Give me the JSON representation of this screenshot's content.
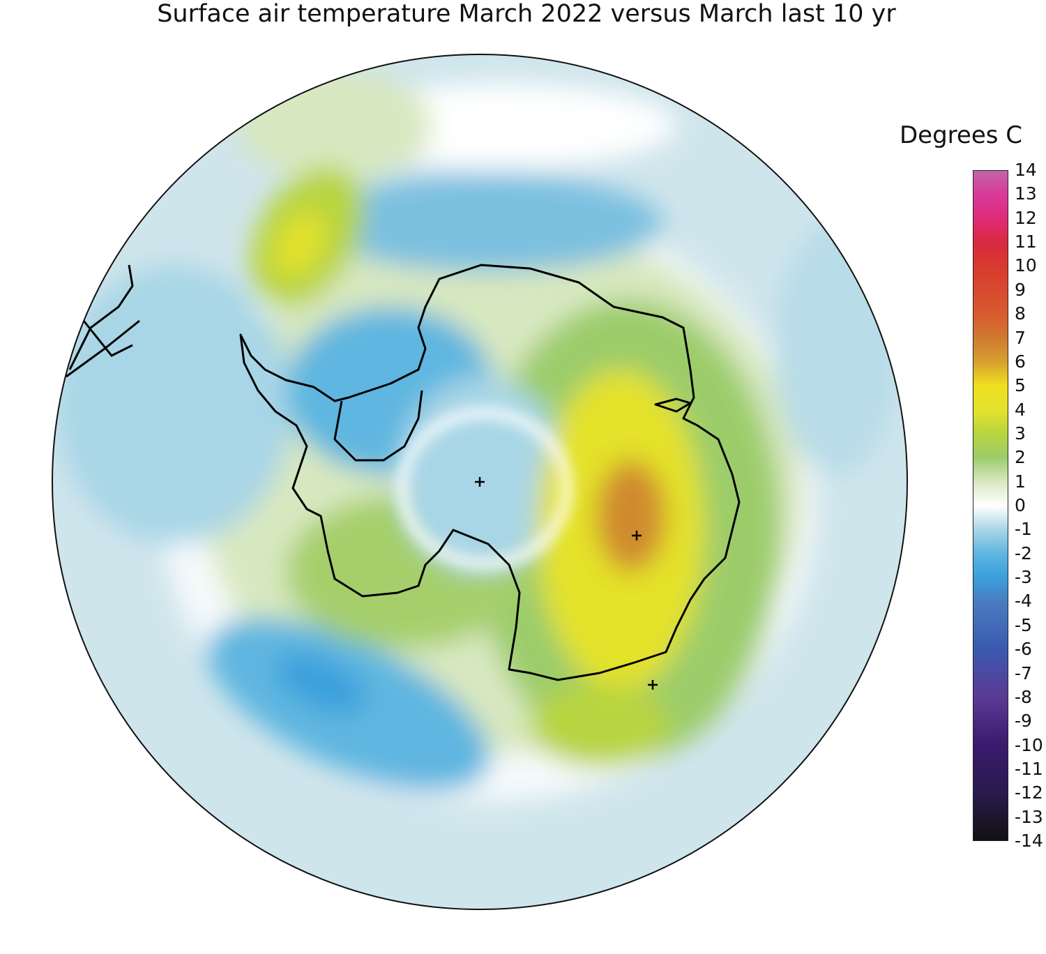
{
  "title": "Surface air temperature March 2022 versus March last 10 yr",
  "legend": {
    "title": "Degrees C",
    "ticks": [
      "14",
      "13",
      "12",
      "11",
      "10",
      "9",
      "8",
      "7",
      "6",
      "5",
      "4",
      "3",
      "2",
      "1",
      "0",
      "-1",
      "-2",
      "-3",
      "-4",
      "-5",
      "-6",
      "-7",
      "-8",
      "-9",
      "-10",
      "-11",
      "-12",
      "-13",
      "-14"
    ],
    "colors": {
      "-14": "#111111",
      "-12": "#2a1a4e",
      "-10": "#3b1a6e",
      "-8": "#5a3a94",
      "-6": "#3a5ab0",
      "-4": "#4a7cc0",
      "-3": "#3aa0dc",
      "-2": "#5fb6e0",
      "-1": "#a9d6e6",
      "0": "#ffffff",
      "1": "#d8e8c0",
      "2": "#9ccc6a",
      "3": "#b8d440",
      "4": "#e4e22c",
      "5": "#f0e020",
      "6": "#d8a030",
      "7": "#d07a30",
      "8": "#d85a30",
      "10": "#d83a2e",
      "11": "#d82a40",
      "12": "#e02a78",
      "13": "#d83a9a",
      "14": "#c464a8"
    }
  },
  "map": {
    "projection": "south polar stereographic",
    "anomaly_fields": {
      "ocean_background": "#c8e2ea",
      "interior_cold": "#a6d4e4",
      "east_warm": "#e4e22c",
      "east_peak": "#d08a2e",
      "green_band": "#a6cf6c",
      "cold_ocean_blue": "#5fb2dd"
    }
  }
}
